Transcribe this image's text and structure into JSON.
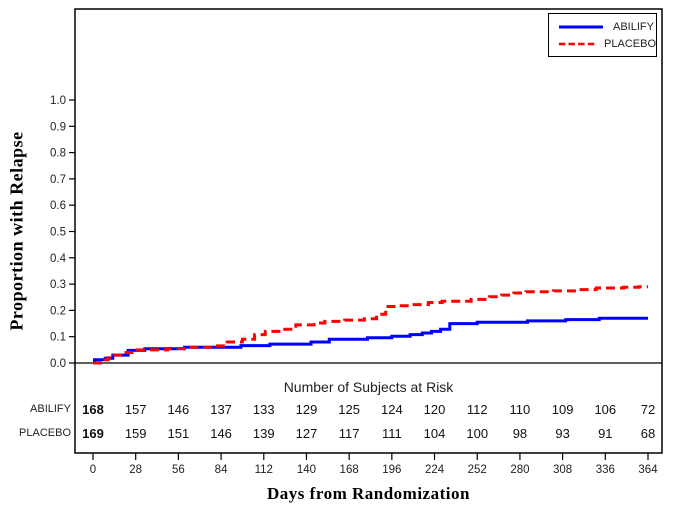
{
  "chart_data": {
    "type": "line",
    "variant": "kaplan_meier_step",
    "title": "",
    "xlabel": "Days from Randomization",
    "ylabel": "Proportion with Relapse",
    "grid": false,
    "background": "#ffffff",
    "axis_color": "#000000",
    "legend_position": "top-right-inside",
    "xlim": [
      0,
      364
    ],
    "ylim": [
      0,
      1.0
    ],
    "x_ticks": [
      0,
      28,
      56,
      84,
      112,
      140,
      168,
      196,
      224,
      252,
      280,
      308,
      336,
      364
    ],
    "y_ticks": [
      0,
      0.1,
      0.2,
      0.3,
      0.4,
      0.5,
      0.6,
      0.7,
      0.8,
      0.9,
      1.0
    ],
    "series": [
      {
        "name": "ABILIFY",
        "color": "#0000ff",
        "style": "solid",
        "step": true,
        "points": [
          [
            0,
            0
          ],
          [
            1,
            0.012
          ],
          [
            8,
            0.018
          ],
          [
            13,
            0.03
          ],
          [
            23,
            0.048
          ],
          [
            34,
            0.054
          ],
          [
            60,
            0.06
          ],
          [
            97,
            0.066
          ],
          [
            116,
            0.072
          ],
          [
            143,
            0.08
          ],
          [
            155,
            0.09
          ],
          [
            180,
            0.096
          ],
          [
            196,
            0.102
          ],
          [
            208,
            0.108
          ],
          [
            216,
            0.114
          ],
          [
            222,
            0.12
          ],
          [
            228,
            0.128
          ],
          [
            234,
            0.15
          ],
          [
            252,
            0.155
          ],
          [
            285,
            0.16
          ],
          [
            310,
            0.165
          ],
          [
            332,
            0.17
          ],
          [
            364,
            0.17
          ]
        ]
      },
      {
        "name": "PLACEBO",
        "color": "#ff0000",
        "style": "dashed",
        "step": true,
        "points": [
          [
            0,
            0
          ],
          [
            6,
            0.012
          ],
          [
            10,
            0.02
          ],
          [
            14,
            0.03
          ],
          [
            20,
            0.04
          ],
          [
            27,
            0.05
          ],
          [
            49,
            0.055
          ],
          [
            60,
            0.06
          ],
          [
            79,
            0.065
          ],
          [
            88,
            0.08
          ],
          [
            98,
            0.09
          ],
          [
            106,
            0.108
          ],
          [
            113,
            0.12
          ],
          [
            124,
            0.128
          ],
          [
            133,
            0.145
          ],
          [
            145,
            0.152
          ],
          [
            152,
            0.158
          ],
          [
            165,
            0.163
          ],
          [
            178,
            0.168
          ],
          [
            186,
            0.185
          ],
          [
            192,
            0.215
          ],
          [
            199,
            0.218
          ],
          [
            209,
            0.222
          ],
          [
            220,
            0.23
          ],
          [
            229,
            0.235
          ],
          [
            248,
            0.242
          ],
          [
            260,
            0.252
          ],
          [
            268,
            0.258
          ],
          [
            276,
            0.266
          ],
          [
            284,
            0.271
          ],
          [
            302,
            0.274
          ],
          [
            318,
            0.279
          ],
          [
            330,
            0.285
          ],
          [
            348,
            0.288
          ],
          [
            358,
            0.29
          ],
          [
            364,
            0.29
          ]
        ]
      }
    ],
    "number_at_risk": {
      "title": "Number of Subjects at Risk",
      "days": [
        0,
        28,
        56,
        84,
        112,
        140,
        168,
        196,
        224,
        252,
        280,
        308,
        336,
        364
      ],
      "rows": [
        {
          "label": "ABILIFY",
          "values": [
            168,
            157,
            146,
            137,
            133,
            129,
            125,
            124,
            120,
            112,
            110,
            109,
            106,
            72
          ]
        },
        {
          "label": "PLACEBO",
          "values": [
            169,
            159,
            151,
            146,
            139,
            127,
            117,
            111,
            104,
            100,
            98,
            93,
            91,
            68
          ]
        }
      ]
    }
  }
}
